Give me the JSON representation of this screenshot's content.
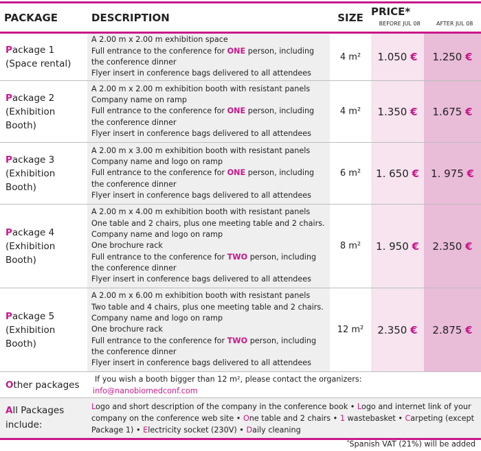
{
  "header": {
    "package": "PACKAGE",
    "description": "DESCRIPTION",
    "size": "SIZE",
    "price": "PRICE*",
    "before": "BEFORE JUL 08",
    "after": "AFTER JUL 08"
  },
  "packages": [
    {
      "initial": "P",
      "name": "ackage 1",
      "sub": "(Space rental)",
      "lines": [
        "A 2.00 m x 2.00 m exhibition space",
        "Full entrance to the conference for |ONE| person, including the conference dinner",
        "Flyer insert in conference bags delivered to all attendees"
      ],
      "size": "4 m²",
      "before": "1.050",
      "after": "1.250"
    },
    {
      "initial": "P",
      "name": "ackage 2",
      "sub": "(Exhibition Booth)",
      "lines": [
        "A 2.00 m x 2.00 m exhibition booth with resistant panels",
        "Company name on ramp",
        "Full entrance to the conference for |ONE| person, including the conference dinner",
        "Flyer insert in conference bags delivered to all attendees"
      ],
      "size": "4 m²",
      "before": "1.350",
      "after": "1.675"
    },
    {
      "initial": "P",
      "name": "ackage 3",
      "sub": "(Exhibition Booth)",
      "lines": [
        "A 2.00 m x 3.00 m exhibition booth with resistant panels",
        "Company name and logo on ramp",
        "Full entrance to the conference for |ONE| person, including the conference dinner",
        "Flyer insert in conference bags delivered to all attendees"
      ],
      "size": "6 m²",
      "before": "1. 650",
      "after": "1. 975"
    },
    {
      "initial": "P",
      "name": "ackage 4",
      "sub": "(Exhibition Booth)",
      "lines": [
        "A 2.00 m x 4.00 m exhibition booth with resistant panels",
        "One table and 2 chairs, plus one meeting table and 2 chairs.",
        "Company name and logo on ramp",
        "One brochure rack",
        "Full entrance to the conference for |TWO| person, including the conference dinner",
        "Flyer insert in conference bags delivered to all attendees"
      ],
      "size": "8 m²",
      "before": "1. 950",
      "after": "2.350"
    },
    {
      "initial": "P",
      "name": "ackage 5",
      "sub": "(Exhibition Booth)",
      "lines": [
        "A 2.00 m x 6.00 m exhibition booth with resistant panels",
        "Two table and 4 chairs, plus one meeting table and 2 chairs.",
        "Company name and logo on ramp",
        "One brochure rack",
        "Full entrance to the conference for |TWO| person, including the conference dinner",
        "Flyer insert in conference bags delivered to all attendees"
      ],
      "size": "12 m²",
      "before": "2.350",
      "after": "2.875"
    }
  ],
  "currency": "€",
  "other": {
    "initial": "O",
    "label": "ther packages",
    "text": "If you wish a booth bigger than 12 m², please contact the organizers:",
    "email": "info@nanobiomedconf.com"
  },
  "all": {
    "initial": "A",
    "label": "ll Packages include:",
    "items": [
      {
        "i": "L",
        "t": "ogo and short description of the company in the conference book"
      },
      {
        "i": "L",
        "t": "ogo and internet link of your company on the conference web site"
      },
      {
        "i": "O",
        "t": "ne table and 2 chairs"
      },
      {
        "i": "1",
        "t": " wastebasket"
      },
      {
        "i": "C",
        "t": "arpeting (except Package 1)"
      },
      {
        "i": "E",
        "t": "lectricity socket (230V)"
      },
      {
        "i": "D",
        "t": "aily cleaning"
      }
    ],
    "separator": " • "
  },
  "footnote": {
    "mark": "*",
    "text": "Spanish VAT (21%) will be added"
  },
  "colors": {
    "accent": "#c8178a",
    "before_bg": "#f7e4ef",
    "after_bg": "#e9bcd8",
    "desc_bg": "#efefef"
  }
}
